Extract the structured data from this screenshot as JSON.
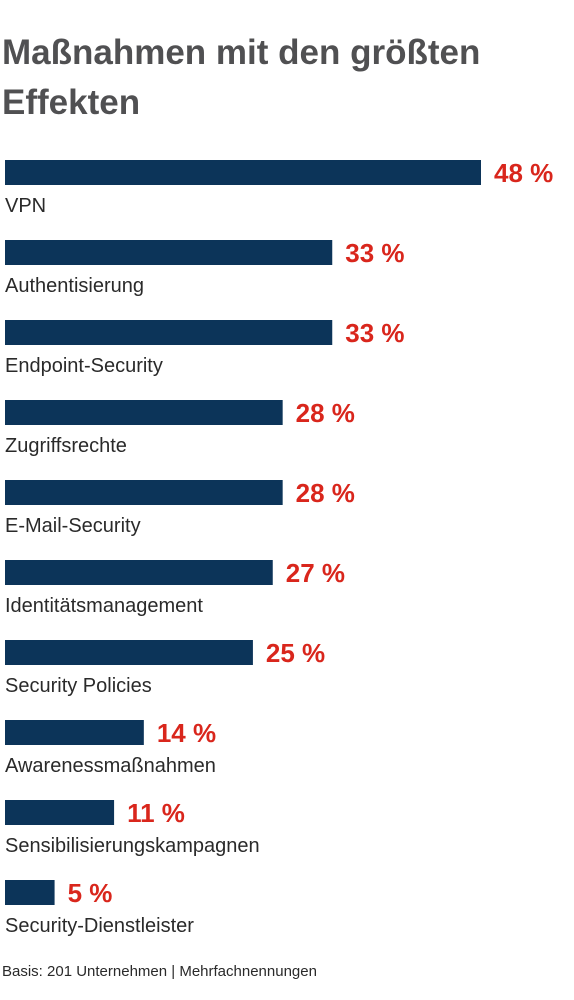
{
  "chart_data": {
    "type": "bar",
    "orientation": "horizontal",
    "title": "Maßnahmen mit den größten Effekten",
    "categories": [
      "VPN",
      "Authentisierung",
      "Endpoint-Security",
      "Zugriffsrechte",
      "E-Mail-Security",
      "Identitätsmanagement",
      "Security Policies",
      "Awarenessmaßnahmen",
      "Sensibilisierungskampagnen",
      "Security-Dienstleister"
    ],
    "values": [
      48,
      33,
      33,
      28,
      28,
      27,
      25,
      14,
      11,
      5
    ],
    "value_labels": [
      "48 %",
      "33 %",
      "33 %",
      "28 %",
      "28 %",
      "27 %",
      "25 %",
      "14 %",
      "11 %",
      "5 %"
    ],
    "unit": "%",
    "grid": false,
    "bar_color": "#0c3459",
    "value_label_color": "#d9261c"
  },
  "footnote": "Basis: 201 Unternehmen | Mehrfachnennungen"
}
